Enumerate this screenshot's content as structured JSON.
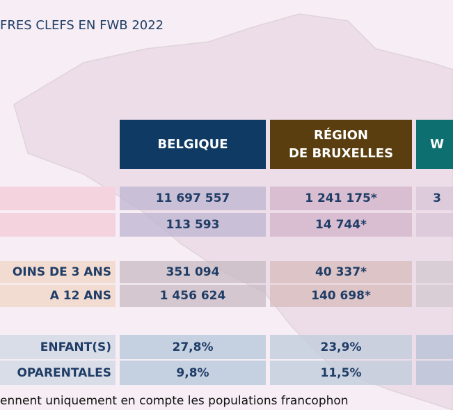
{
  "title": "FRES CLEFS EN FWB 2022",
  "table": {
    "headers": [
      [
        "BELGIQUE"
      ],
      [
        "RÉGION",
        "DE BRUXELLES"
      ],
      [
        "W"
      ]
    ],
    "rows": [
      {
        "cells": [
          "11 697 557",
          "1 241 175*",
          "3"
        ]
      },
      {
        "cells": [
          "113 593",
          "14 744*"
        ]
      },
      {
        "label": "OINS DE 3 ANS",
        "cells": [
          "351 094",
          "40 337*"
        ]
      },
      {
        "label": "A 12 ANS",
        "cells": [
          "1 456 624",
          "140 698*"
        ]
      },
      {
        "label": "ENFANT(S)",
        "cells": [
          "27,8%",
          "23,9%"
        ]
      },
      {
        "label": "OPARENTALES",
        "cells": [
          "9,8%",
          "11,5%"
        ]
      }
    ]
  },
  "footnote": "ennent uniquement en compte les populations francophon"
}
